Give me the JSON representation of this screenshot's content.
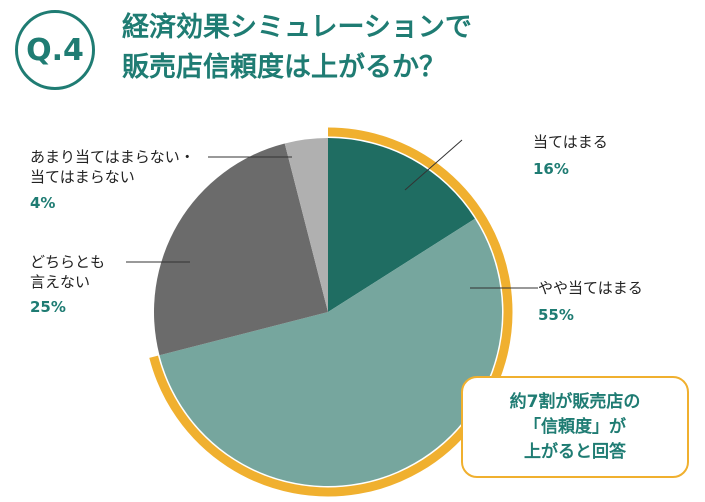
{
  "header": {
    "badge": "Q.4",
    "title_line1": "経済効果シミュレーションで",
    "title_line2": "販売店信頼度は上がるか？"
  },
  "chart_data": {
    "type": "pie",
    "slices": [
      {
        "label": "当てはまる",
        "value": 16,
        "pct_label": "16%",
        "color": "#1f6d62"
      },
      {
        "label": "やや当てはまる",
        "value": 55,
        "pct_label": "55%",
        "color": "#76a69e"
      },
      {
        "label": "どちらとも言えない",
        "label_line1": "どちらとも",
        "label_line2": "言えない",
        "value": 25,
        "pct_label": "25%",
        "color": "#6b6b6b"
      },
      {
        "label": "あまり当てはまらない・当てはまらない",
        "label_line1": "あまり当てはまらない・",
        "label_line2": "当てはまらない",
        "value": 4,
        "pct_label": "4%",
        "color": "#b0b0b0"
      }
    ],
    "highlight_color": "#f0b02f"
  },
  "callout": {
    "line1": "約7割が販売店の",
    "line2": "「信頼度」が",
    "line3": "上がると回答"
  }
}
